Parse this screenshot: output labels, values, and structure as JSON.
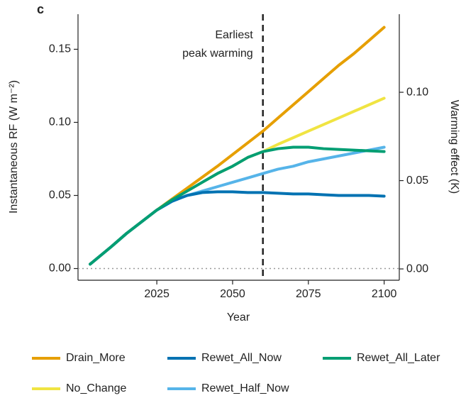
{
  "chart_data": {
    "type": "line",
    "panel_label": "c",
    "ylabel": "Instantaneous RF (W m⁻²)",
    "y2label": "Warming effect (K)",
    "xlabel": "Year",
    "annotation": "Earliest\npeak warming",
    "vline": 2060,
    "x": [
      2003,
      2010,
      2015,
      2020,
      2025,
      2030,
      2035,
      2040,
      2045,
      2050,
      2055,
      2060,
      2065,
      2070,
      2075,
      2080,
      2085,
      2090,
      2095,
      2100
    ],
    "series": [
      {
        "name": "Drain_More",
        "color": "#e69f00",
        "values": [
          0.003,
          0.015,
          0.024,
          0.032,
          0.04,
          0.0475,
          0.055,
          0.0625,
          0.07,
          0.078,
          0.086,
          0.094,
          0.103,
          0.112,
          0.121,
          0.13,
          0.139,
          0.147,
          0.156,
          0.165
        ]
      },
      {
        "name": "Rewet_All_Now",
        "color": "#0072b2",
        "values": [
          0.003,
          0.015,
          0.024,
          0.032,
          0.04,
          0.046,
          0.05,
          0.052,
          0.0525,
          0.0525,
          0.052,
          0.052,
          0.0515,
          0.051,
          0.051,
          0.0505,
          0.05,
          0.05,
          0.05,
          0.0495
        ]
      },
      {
        "name": "Rewet_All_Later",
        "color": "#009e73",
        "values": [
          0.003,
          0.015,
          0.024,
          0.032,
          0.04,
          0.047,
          0.053,
          0.059,
          0.065,
          0.07,
          0.076,
          0.08,
          0.082,
          0.083,
          0.083,
          0.082,
          0.0815,
          0.081,
          0.0805,
          0.08
        ]
      },
      {
        "name": "No_Change",
        "color": "#f0e442",
        "values": [
          0.003,
          0.015,
          0.024,
          0.032,
          0.04,
          0.047,
          0.053,
          0.059,
          0.065,
          0.07,
          0.076,
          0.08,
          0.085,
          0.0895,
          0.094,
          0.0985,
          0.103,
          0.1075,
          0.112,
          0.1165
        ]
      },
      {
        "name": "Rewet_Half_Now",
        "color": "#56b4e9",
        "values": [
          0.003,
          0.015,
          0.024,
          0.032,
          0.04,
          0.046,
          0.05,
          0.053,
          0.056,
          0.059,
          0.062,
          0.065,
          0.068,
          0.07,
          0.073,
          0.075,
          0.077,
          0.079,
          0.081,
          0.083
        ]
      }
    ],
    "xlim": [
      1999,
      2105
    ],
    "xticks": [
      2025,
      2050,
      2075,
      2100
    ],
    "ylim": [
      -0.008,
      0.174
    ],
    "yticks": [
      {
        "value": 0,
        "label": "0.00"
      },
      {
        "value": 0.05,
        "label": "0.05"
      },
      {
        "value": 0.1,
        "label": "0.10"
      },
      {
        "value": 0.15,
        "label": "0.15"
      }
    ],
    "y2lim": [
      -0.0064,
      0.1442
    ],
    "y2ticks": [
      {
        "value": 0,
        "label": "0.00"
      },
      {
        "value": 0.05,
        "label": "0.05"
      },
      {
        "value": 0.1,
        "label": "0.10"
      }
    ],
    "legend": "bottom"
  }
}
